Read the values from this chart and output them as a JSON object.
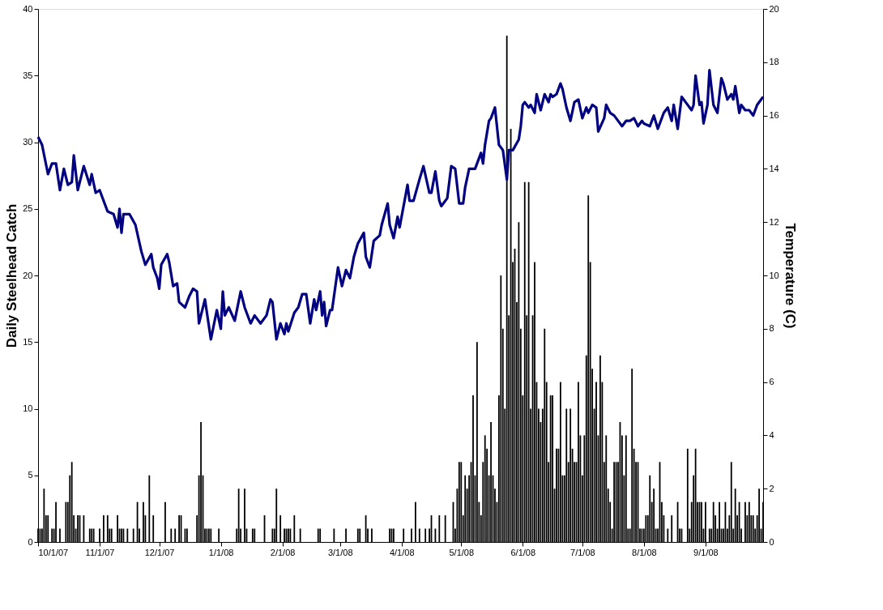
{
  "chart_data": {
    "type": "bar",
    "ylabel": "Daily Steelhead Catch",
    "y2label": "Temperature (C)",
    "xlim": [
      "2007-10-01",
      "2008-09-30"
    ],
    "xticks": [
      {
        "value": "2007-10-01",
        "label": "10/1/07"
      },
      {
        "value": "2007-11-01",
        "label": "11/1/07"
      },
      {
        "value": "2007-12-01",
        "label": "12/1/07"
      },
      {
        "value": "2008-01-01",
        "label": "1/1/08"
      },
      {
        "value": "2008-02-01",
        "label": "2/1/08"
      },
      {
        "value": "2008-03-01",
        "label": "3/1/08"
      },
      {
        "value": "2008-04-01",
        "label": "4/1/08"
      },
      {
        "value": "2008-05-01",
        "label": "5/1/08"
      },
      {
        "value": "2008-06-01",
        "label": "6/1/08"
      },
      {
        "value": "2008-07-01",
        "label": "7/1/08"
      },
      {
        "value": "2008-08-01",
        "label": "8/1/08"
      },
      {
        "value": "2008-09-01",
        "label": "9/1/08"
      }
    ],
    "ylim": [
      0,
      40
    ],
    "yticks": [
      0,
      5,
      10,
      15,
      20,
      25,
      30,
      35,
      40
    ],
    "y2lim": [
      0,
      20
    ],
    "y2ticks": [
      0,
      2,
      4,
      6,
      8,
      10,
      12,
      14,
      16,
      18,
      20
    ],
    "series": [
      {
        "color": "#000000",
        "x": [
          "2007-10-01",
          "2007-10-02",
          "2007-10-03",
          "2007-10-04",
          "2007-10-05",
          "2007-10-06",
          "2007-10-08",
          "2007-10-09",
          "2007-10-10",
          "2007-10-12",
          "2007-10-15",
          "2007-10-16",
          "2007-10-17",
          "2007-10-18",
          "2007-10-19",
          "2007-10-20",
          "2007-10-21",
          "2007-10-22",
          "2007-10-24",
          "2007-10-27",
          "2007-10-28",
          "2007-10-29",
          "2007-11-01",
          "2007-11-03",
          "2007-11-05",
          "2007-11-06",
          "2007-11-07",
          "2007-11-10",
          "2007-11-11",
          "2007-11-12",
          "2007-11-13",
          "2007-11-15",
          "2007-11-18",
          "2007-11-20",
          "2007-11-21",
          "2007-11-23",
          "2007-11-24",
          "2007-11-26",
          "2007-11-28",
          "2007-12-04",
          "2007-12-07",
          "2007-12-09",
          "2007-12-11",
          "2007-12-12",
          "2007-12-14",
          "2007-12-15",
          "2007-12-20",
          "2007-12-21",
          "2007-12-22",
          "2007-12-23",
          "2007-12-24",
          "2007-12-25",
          "2007-12-26",
          "2007-12-27",
          "2007-12-31",
          "2008-01-09",
          "2008-01-10",
          "2008-01-11",
          "2008-01-13",
          "2008-01-14",
          "2008-01-17",
          "2008-01-18",
          "2008-01-23",
          "2008-01-27",
          "2008-01-28",
          "2008-01-29",
          "2008-01-31",
          "2008-02-02",
          "2008-02-03",
          "2008-02-04",
          "2008-02-05",
          "2008-02-07",
          "2008-02-10",
          "2008-02-19",
          "2008-02-20",
          "2008-02-27",
          "2008-03-04",
          "2008-03-10",
          "2008-03-11",
          "2008-03-14",
          "2008-03-15",
          "2008-03-17",
          "2008-03-26",
          "2008-03-27",
          "2008-03-28",
          "2008-04-02",
          "2008-04-06",
          "2008-04-08",
          "2008-04-10",
          "2008-04-13",
          "2008-04-15",
          "2008-04-16",
          "2008-04-18",
          "2008-04-20",
          "2008-04-23",
          "2008-04-27",
          "2008-04-28",
          "2008-04-29",
          "2008-04-30",
          "2008-05-01",
          "2008-05-02",
          "2008-05-03",
          "2008-05-04",
          "2008-05-05",
          "2008-05-06",
          "2008-05-07",
          "2008-05-08",
          "2008-05-09",
          "2008-05-10",
          "2008-05-11",
          "2008-05-12",
          "2008-05-13",
          "2008-05-14",
          "2008-05-15",
          "2008-05-16",
          "2008-05-17",
          "2008-05-18",
          "2008-05-19",
          "2008-05-20",
          "2008-05-21",
          "2008-05-22",
          "2008-05-23",
          "2008-05-24",
          "2008-05-25",
          "2008-05-26",
          "2008-05-27",
          "2008-05-28",
          "2008-05-29",
          "2008-05-30",
          "2008-05-31",
          "2008-06-01",
          "2008-06-02",
          "2008-06-03",
          "2008-06-04",
          "2008-06-05",
          "2008-06-06",
          "2008-06-07",
          "2008-06-08",
          "2008-06-09",
          "2008-06-10",
          "2008-06-11",
          "2008-06-12",
          "2008-06-13",
          "2008-06-14",
          "2008-06-15",
          "2008-06-16",
          "2008-06-17",
          "2008-06-18",
          "2008-06-19",
          "2008-06-20",
          "2008-06-21",
          "2008-06-22",
          "2008-06-23",
          "2008-06-24",
          "2008-06-25",
          "2008-06-26",
          "2008-06-27",
          "2008-06-28",
          "2008-06-29",
          "2008-06-30",
          "2008-07-01",
          "2008-07-02",
          "2008-07-03",
          "2008-07-04",
          "2008-07-05",
          "2008-07-06",
          "2008-07-07",
          "2008-07-08",
          "2008-07-09",
          "2008-07-10",
          "2008-07-11",
          "2008-07-12",
          "2008-07-13",
          "2008-07-14",
          "2008-07-15",
          "2008-07-16",
          "2008-07-17",
          "2008-07-18",
          "2008-07-19",
          "2008-07-20",
          "2008-07-21",
          "2008-07-22",
          "2008-07-23",
          "2008-07-24",
          "2008-07-25",
          "2008-07-26",
          "2008-07-27",
          "2008-07-28",
          "2008-07-29",
          "2008-07-30",
          "2008-07-31",
          "2008-08-01",
          "2008-08-02",
          "2008-08-03",
          "2008-08-04",
          "2008-08-05",
          "2008-08-06",
          "2008-08-07",
          "2008-08-08",
          "2008-08-09",
          "2008-08-10",
          "2008-08-11",
          "2008-08-12",
          "2008-08-13",
          "2008-08-14",
          "2008-08-15",
          "2008-08-16",
          "2008-08-17",
          "2008-08-18",
          "2008-08-19",
          "2008-08-20",
          "2008-08-21",
          "2008-08-22",
          "2008-08-23",
          "2008-08-24",
          "2008-08-25",
          "2008-08-26",
          "2008-08-27",
          "2008-08-28",
          "2008-08-29",
          "2008-08-30",
          "2008-08-31",
          "2008-09-01",
          "2008-09-02",
          "2008-09-03",
          "2008-09-04",
          "2008-09-05",
          "2008-09-06",
          "2008-09-07",
          "2008-09-08",
          "2008-09-09",
          "2008-09-10",
          "2008-09-11",
          "2008-09-12",
          "2008-09-13",
          "2008-09-14",
          "2008-09-15",
          "2008-09-16",
          "2008-09-17",
          "2008-09-18",
          "2008-09-19",
          "2008-09-20",
          "2008-09-21",
          "2008-09-22",
          "2008-09-23",
          "2008-09-24",
          "2008-09-25",
          "2008-09-26",
          "2008-09-27",
          "2008-09-28",
          "2008-09-29",
          "2008-09-30"
        ],
        "values": [
          1,
          1,
          1,
          4,
          2,
          2,
          1,
          1,
          3,
          1,
          3,
          3,
          5,
          6,
          2,
          1,
          2,
          2,
          2,
          1,
          1,
          1,
          1,
          2,
          2,
          1,
          1,
          2,
          1,
          1,
          1,
          1,
          1,
          3,
          1,
          3,
          2,
          5,
          2,
          3,
          1,
          1,
          2,
          2,
          1,
          1,
          2,
          5,
          9,
          5,
          1,
          1,
          1,
          1,
          1,
          1,
          4,
          1,
          4,
          1,
          1,
          1,
          2,
          1,
          1,
          4,
          2,
          1,
          1,
          1,
          1,
          2,
          1,
          1,
          1,
          1,
          1,
          1,
          1,
          2,
          1,
          1,
          1,
          1,
          1,
          1,
          1,
          3,
          1,
          1,
          1,
          2,
          1,
          2,
          2,
          3,
          1,
          4,
          6,
          6,
          2,
          5,
          4,
          5,
          6,
          11,
          5,
          15,
          3,
          2,
          6,
          8,
          7,
          5,
          9,
          5,
          4,
          3,
          11,
          20,
          16,
          10,
          38,
          17,
          31,
          21,
          22,
          18,
          24,
          16,
          11,
          27,
          17,
          27,
          10,
          17,
          21,
          12,
          10,
          9,
          10,
          16,
          12,
          6,
          11,
          11,
          4,
          7,
          7,
          12,
          5,
          5,
          10,
          6,
          10,
          7,
          6,
          6,
          12,
          8,
          5,
          8,
          14,
          26,
          21,
          13,
          10,
          12,
          8,
          14,
          12,
          6,
          8,
          4,
          3,
          1,
          6,
          6,
          6,
          9,
          8,
          5,
          8,
          1,
          1,
          13,
          7,
          6,
          6,
          1,
          1,
          1,
          2,
          2,
          5,
          3,
          4,
          1,
          1,
          6,
          3,
          2,
          0,
          1,
          0,
          2,
          0,
          0,
          3,
          1,
          1,
          0,
          0,
          7,
          1,
          3,
          5,
          7,
          3,
          3,
          3,
          1,
          3,
          0,
          1,
          1,
          3,
          2,
          1,
          3,
          1,
          1,
          3,
          1,
          2,
          6,
          1,
          4,
          2,
          3,
          1,
          0,
          3,
          2,
          3,
          2,
          2,
          1,
          2,
          4,
          1,
          3
        ]
      },
      {
        "type": "line",
        "axis": "y2",
        "color": "#000080",
        "x": [
          "2007-10-01",
          "2007-10-03",
          "2007-10-06",
          "2007-10-08",
          "2007-10-10",
          "2007-10-12",
          "2007-10-14",
          "2007-10-16",
          "2007-10-18",
          "2007-10-19",
          "2007-10-21",
          "2007-10-24",
          "2007-10-27",
          "2007-10-28",
          "2007-10-30",
          "2007-11-01",
          "2007-11-05",
          "2007-11-08",
          "2007-11-10",
          "2007-11-11",
          "2007-11-12",
          "2007-11-13",
          "2007-11-16",
          "2007-11-19",
          "2007-11-22",
          "2007-11-24",
          "2007-11-27",
          "2007-11-28",
          "2007-11-30",
          "2007-12-01",
          "2007-12-02",
          "2007-12-05",
          "2007-12-06",
          "2007-12-08",
          "2007-12-10",
          "2007-12-11",
          "2007-12-14",
          "2007-12-16",
          "2007-12-18",
          "2007-12-20",
          "2007-12-21",
          "2007-12-24",
          "2007-12-27",
          "2007-12-30",
          "2008-01-01",
          "2008-01-02",
          "2008-01-03",
          "2008-01-05",
          "2008-01-08",
          "2008-01-11",
          "2008-01-13",
          "2008-01-16",
          "2008-01-18",
          "2008-01-21",
          "2008-01-24",
          "2008-01-26",
          "2008-01-27",
          "2008-01-29",
          "2008-01-31",
          "2008-02-02",
          "2008-02-03",
          "2008-02-04",
          "2008-02-07",
          "2008-02-09",
          "2008-02-11",
          "2008-02-13",
          "2008-02-15",
          "2008-02-17",
          "2008-02-18",
          "2008-02-20",
          "2008-02-21",
          "2008-02-22",
          "2008-02-23",
          "2008-02-25",
          "2008-02-26",
          "2008-02-29",
          "2008-03-02",
          "2008-03-04",
          "2008-03-06",
          "2008-03-08",
          "2008-03-10",
          "2008-03-13",
          "2008-03-14",
          "2008-03-16",
          "2008-03-18",
          "2008-03-21",
          "2008-03-22",
          "2008-03-25",
          "2008-03-26",
          "2008-03-28",
          "2008-03-30",
          "2008-03-31",
          "2008-04-04",
          "2008-04-05",
          "2008-04-07",
          "2008-04-10",
          "2008-04-12",
          "2008-04-15",
          "2008-04-16",
          "2008-04-18",
          "2008-04-20",
          "2008-04-21",
          "2008-04-24",
          "2008-04-26",
          "2008-04-28",
          "2008-04-30",
          "2008-05-02",
          "2008-05-03",
          "2008-05-05",
          "2008-05-08",
          "2008-05-11",
          "2008-05-12",
          "2008-05-13",
          "2008-05-15",
          "2008-05-16",
          "2008-05-18",
          "2008-05-20",
          "2008-05-22",
          "2008-05-24",
          "2008-05-25",
          "2008-05-27",
          "2008-05-30",
          "2008-05-31",
          "2008-06-01",
          "2008-06-02",
          "2008-06-04",
          "2008-06-05",
          "2008-06-07",
          "2008-06-08",
          "2008-06-10",
          "2008-06-12",
          "2008-06-14",
          "2008-06-15",
          "2008-06-16",
          "2008-06-18",
          "2008-06-20",
          "2008-06-21",
          "2008-06-23",
          "2008-06-25",
          "2008-06-27",
          "2008-06-29",
          "2008-07-01",
          "2008-07-03",
          "2008-07-04",
          "2008-07-06",
          "2008-07-08",
          "2008-07-09",
          "2008-07-12",
          "2008-07-13",
          "2008-07-15",
          "2008-07-17",
          "2008-07-18",
          "2008-07-21",
          "2008-07-23",
          "2008-07-25",
          "2008-07-27",
          "2008-07-29",
          "2008-07-31",
          "2008-08-01",
          "2008-08-04",
          "2008-08-06",
          "2008-08-08",
          "2008-08-11",
          "2008-08-13",
          "2008-08-15",
          "2008-08-16",
          "2008-08-18",
          "2008-08-20",
          "2008-08-22",
          "2008-08-25",
          "2008-08-26",
          "2008-08-27",
          "2008-08-29",
          "2008-08-30",
          "2008-08-31",
          "2008-09-02",
          "2008-09-03",
          "2008-09-05",
          "2008-09-07",
          "2008-09-09",
          "2008-09-10",
          "2008-09-12",
          "2008-09-14",
          "2008-09-15",
          "2008-09-16",
          "2008-09-17",
          "2008-09-18",
          "2008-09-19",
          "2008-09-21",
          "2008-09-23",
          "2008-09-25",
          "2008-09-27",
          "2008-09-30"
        ],
        "values": [
          15.2,
          14.9,
          13.8,
          14.2,
          14.2,
          13.2,
          14.0,
          13.4,
          13.5,
          14.5,
          13.2,
          14.1,
          13.4,
          13.8,
          13.1,
          13.2,
          12.4,
          12.3,
          11.8,
          12.5,
          11.6,
          12.3,
          12.3,
          11.9,
          10.9,
          10.4,
          10.8,
          10.3,
          9.9,
          9.5,
          10.4,
          10.8,
          10.5,
          9.6,
          9.7,
          9.0,
          8.8,
          9.2,
          9.5,
          9.4,
          8.2,
          9.1,
          7.6,
          8.7,
          8.0,
          9.4,
          8.5,
          8.8,
          8.3,
          9.4,
          8.8,
          8.2,
          8.5,
          8.2,
          8.5,
          9.1,
          9.0,
          7.6,
          8.2,
          7.8,
          8.2,
          7.9,
          8.6,
          8.8,
          9.3,
          9.3,
          8.2,
          9.1,
          8.7,
          9.4,
          8.5,
          9.0,
          8.1,
          8.7,
          8.7,
          10.3,
          9.6,
          10.2,
          9.9,
          10.7,
          11.2,
          11.6,
          10.7,
          10.3,
          11.3,
          11.5,
          11.9,
          12.7,
          11.9,
          11.4,
          12.2,
          11.8,
          13.4,
          12.8,
          12.8,
          13.6,
          14.1,
          13.1,
          13.1,
          13.9,
          12.8,
          12.6,
          12.9,
          14.1,
          14.0,
          12.7,
          12.7,
          13.3,
          14.0,
          14.0,
          14.6,
          14.2,
          14.9,
          15.8,
          15.9,
          16.3,
          14.9,
          14.7,
          13.6,
          14.7,
          14.7,
          15.1,
          15.6,
          16.4,
          16.5,
          16.3,
          16.4,
          16.1,
          16.8,
          16.2,
          16.8,
          16.5,
          16.8,
          16.7,
          16.8,
          17.2,
          17.0,
          16.3,
          15.8,
          16.5,
          16.6,
          15.9,
          16.3,
          16.1,
          16.4,
          16.3,
          15.4,
          15.9,
          16.4,
          16.1,
          16.0,
          15.9,
          15.6,
          15.8,
          15.8,
          15.9,
          15.6,
          15.8,
          15.7,
          15.6,
          16.0,
          15.5,
          16.1,
          16.3,
          15.8,
          16.4,
          15.5,
          16.7,
          16.5,
          16.2,
          16.4,
          17.5,
          16.4,
          16.5,
          15.7,
          16.4,
          17.7,
          16.4,
          16.1,
          17.4,
          17.2,
          16.6,
          16.8,
          16.6,
          17.1,
          16.6,
          16.1,
          16.4,
          16.2,
          16.2,
          16.0,
          16.4,
          16.7
        ]
      }
    ]
  }
}
